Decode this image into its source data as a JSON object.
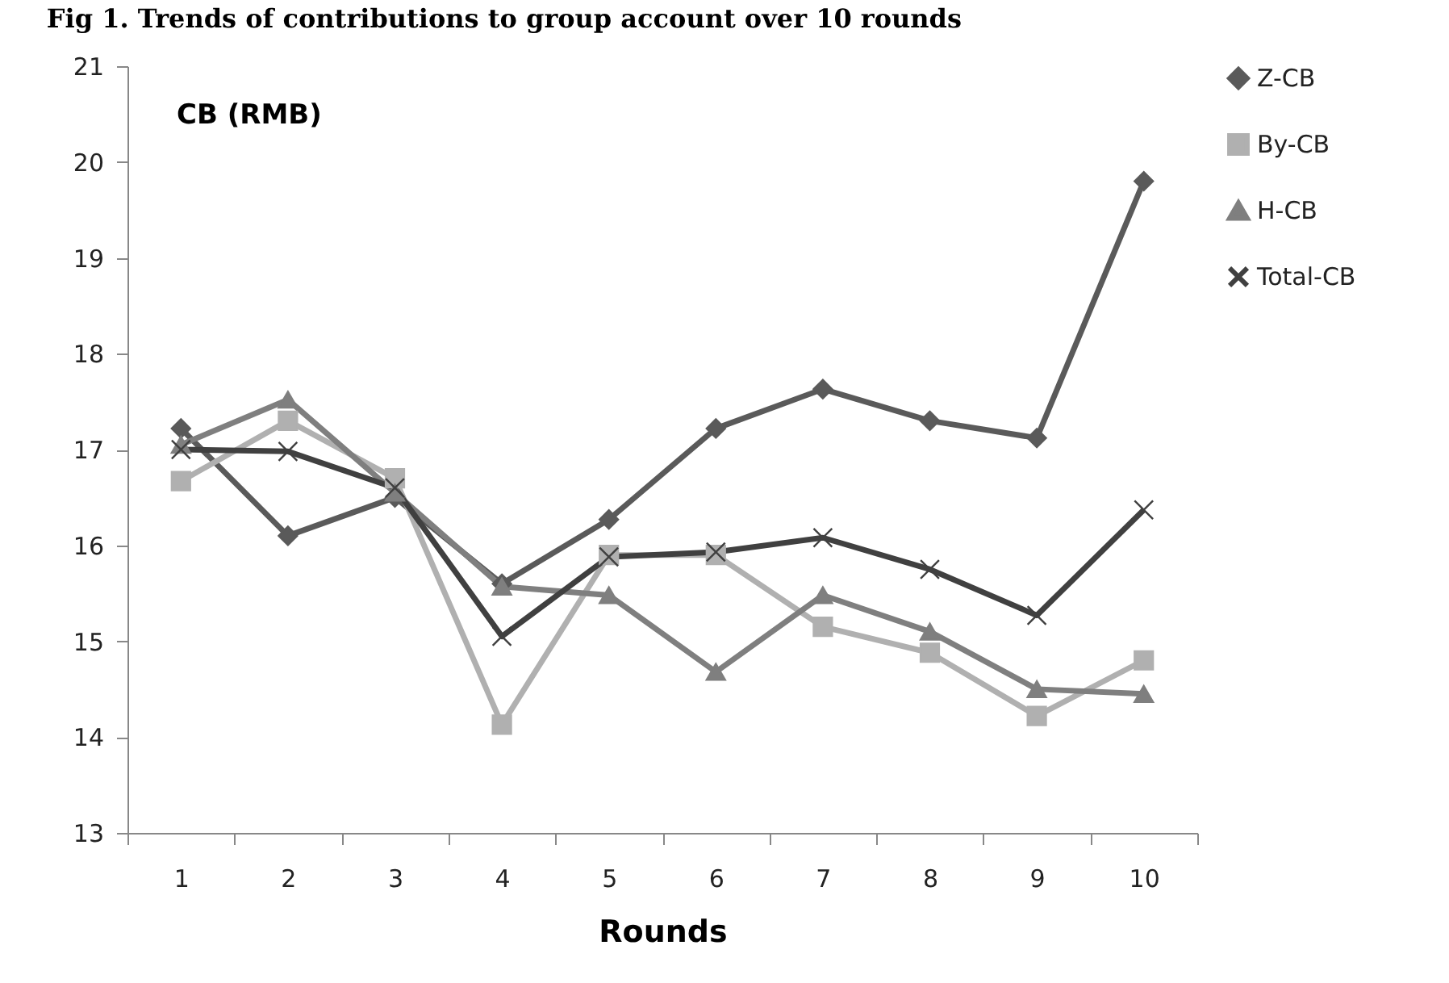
{
  "chart_data": {
    "type": "line",
    "title": "Fig 1. Trends of contributions to group account over 10 rounds",
    "xlabel": "Rounds",
    "ylabel": "CB (RMB)",
    "categories": [
      "1",
      "2",
      "3",
      "4",
      "5",
      "6",
      "7",
      "8",
      "9",
      "10"
    ],
    "series": [
      {
        "name": "Z-CB",
        "color": "#5a5a5a",
        "marker": "diamond",
        "values": [
          17.22,
          16.1,
          16.5,
          15.6,
          16.27,
          17.22,
          17.63,
          17.3,
          17.12,
          19.8
        ]
      },
      {
        "name": "By-CB",
        "color": "#b0b0b0",
        "marker": "square",
        "values": [
          16.67,
          17.3,
          16.7,
          14.13,
          15.9,
          15.9,
          15.15,
          14.88,
          14.22,
          14.8
        ]
      },
      {
        "name": "H-CB",
        "color": "#7f7f7f",
        "marker": "triangle",
        "values": [
          17.05,
          17.52,
          16.55,
          15.57,
          15.48,
          14.68,
          15.48,
          15.1,
          14.5,
          14.45
        ]
      },
      {
        "name": "Total-CB",
        "color": "#404040",
        "marker": "cross",
        "values": [
          17.0,
          16.98,
          16.6,
          15.05,
          15.88,
          15.93,
          16.08,
          15.75,
          15.27,
          16.37
        ]
      }
    ],
    "ylim": [
      13,
      21
    ],
    "yticks": [
      13,
      14,
      15,
      16,
      17,
      18,
      19,
      20,
      21
    ],
    "grid": false,
    "legend": "right"
  }
}
